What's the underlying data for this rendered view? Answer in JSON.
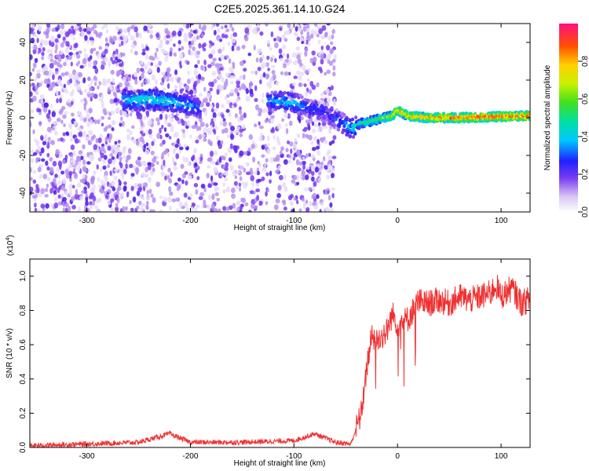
{
  "figure": {
    "title": "C2E5.2025.361.14.10.G24"
  },
  "chart_data": [
    {
      "type": "heatmap",
      "xlabel": "Height of straight line (km)",
      "ylabel": "Frequency (Hz)",
      "xlim": [
        -355,
        128
      ],
      "ylim": [
        -50,
        50
      ],
      "xticks": [
        -300,
        -200,
        -100,
        0,
        100
      ],
      "yticks": [
        -40,
        -20,
        0,
        20,
        40
      ],
      "grid": false,
      "colorbar": {
        "label": "Normalized spectral amplitude",
        "range": [
          0,
          1
        ],
        "ticks": [
          0.0,
          0.2,
          0.4,
          0.6,
          0.8
        ]
      },
      "ridge": {
        "x": [
          -265,
          -240,
          -210,
          -190,
          -120,
          -100,
          -90,
          -70,
          -55,
          -45,
          -35,
          -20,
          -5,
          0,
          10,
          30,
          60,
          128
        ],
        "y": [
          9,
          10,
          8,
          5,
          9,
          8,
          6,
          3,
          -2,
          -6,
          -3,
          -1,
          1,
          4,
          1,
          0,
          0,
          1
        ],
        "amplitude": [
          0.4,
          0.45,
          0.4,
          0.3,
          0.35,
          0.4,
          0.3,
          0.25,
          0.3,
          0.4,
          0.5,
          0.6,
          0.7,
          0.8,
          0.8,
          0.85,
          0.9,
          0.95
        ]
      }
    },
    {
      "type": "line",
      "xlabel": "Height of straight line (km)",
      "ylabel": "SNR (10 * v/v)",
      "yscale_label": "(x10",
      "yscale_exp": "4",
      "yscale_close": ")",
      "xlim": [
        -355,
        128
      ],
      "ylim": [
        0,
        1.1
      ],
      "xticks": [
        -300,
        -200,
        -100,
        0,
        100
      ],
      "yticks": [
        0.0,
        0.2,
        0.4,
        0.6,
        0.8,
        1.0
      ],
      "grid": false,
      "series": [
        {
          "color": "#f03030",
          "x": [
            -355,
            -300,
            -250,
            -220,
            -200,
            -150,
            -100,
            -80,
            -60,
            -45,
            -35,
            -30,
            -25,
            -20,
            -10,
            -5,
            0,
            10,
            20,
            30,
            40,
            50,
            60,
            70,
            80,
            90,
            95,
            100,
            110,
            120,
            128
          ],
          "y": [
            0.01,
            0.02,
            0.03,
            0.08,
            0.03,
            0.03,
            0.04,
            0.08,
            0.03,
            0.02,
            0.2,
            0.45,
            0.65,
            0.62,
            0.68,
            0.78,
            0.72,
            0.75,
            0.85,
            0.84,
            0.86,
            0.84,
            0.88,
            0.86,
            0.88,
            0.9,
            0.95,
            0.88,
            0.93,
            0.84,
            0.87
          ]
        }
      ]
    }
  ]
}
